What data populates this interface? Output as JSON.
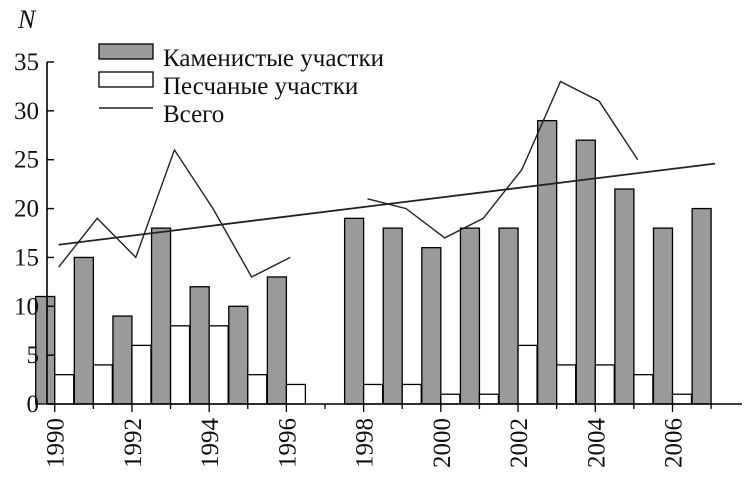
{
  "chart_data": {
    "type": "bar",
    "ylabel": "N",
    "ylim": [
      0,
      35
    ],
    "yticks": [
      0,
      5,
      10,
      15,
      20,
      25,
      30,
      35
    ],
    "xlim": [
      1989.8,
      2007.8
    ],
    "xticks": [
      "1990",
      "1992",
      "1994",
      "1996",
      "1998",
      "2000",
      "2002",
      "2004",
      "2006"
    ],
    "categories": [
      1990,
      1991,
      1992,
      1993,
      1994,
      1995,
      1996,
      1998,
      1999,
      2000,
      2001,
      2002,
      2003,
      2004,
      2005,
      2006,
      2007
    ],
    "series": [
      {
        "name": "Каменистые участки",
        "color": "#9a9a9a",
        "values": [
          11,
          15,
          9,
          18,
          12,
          10,
          13,
          19,
          18,
          16,
          18,
          18,
          29,
          27,
          22,
          18,
          20
        ]
      },
      {
        "name": "Песчаные участки",
        "color": "#ffffff",
        "values": [
          3,
          4,
          6,
          8,
          8,
          3,
          2,
          2,
          2,
          1,
          1,
          6,
          4,
          4,
          3,
          1,
          null
        ]
      }
    ],
    "total_line": {
      "name": "Всего",
      "segments": [
        [
          [
            1990.1,
            14
          ],
          [
            1991.1,
            19
          ],
          [
            1992.1,
            15
          ],
          [
            1993.1,
            26
          ],
          [
            1994.1,
            20
          ],
          [
            1995.1,
            13
          ],
          [
            1996.1,
            15
          ]
        ],
        [
          [
            1998.1,
            21
          ],
          [
            1999.1,
            20
          ],
          [
            2000.1,
            17
          ],
          [
            2001.1,
            19
          ],
          [
            2002.1,
            24
          ],
          [
            2003.1,
            33
          ],
          [
            2004.1,
            31
          ],
          [
            2005.1,
            25
          ]
        ]
      ]
    },
    "trend_line": [
      [
        1990.1,
        16.3
      ],
      [
        2007.1,
        24.6
      ]
    ],
    "legend_position": "top-left",
    "grid": false
  }
}
